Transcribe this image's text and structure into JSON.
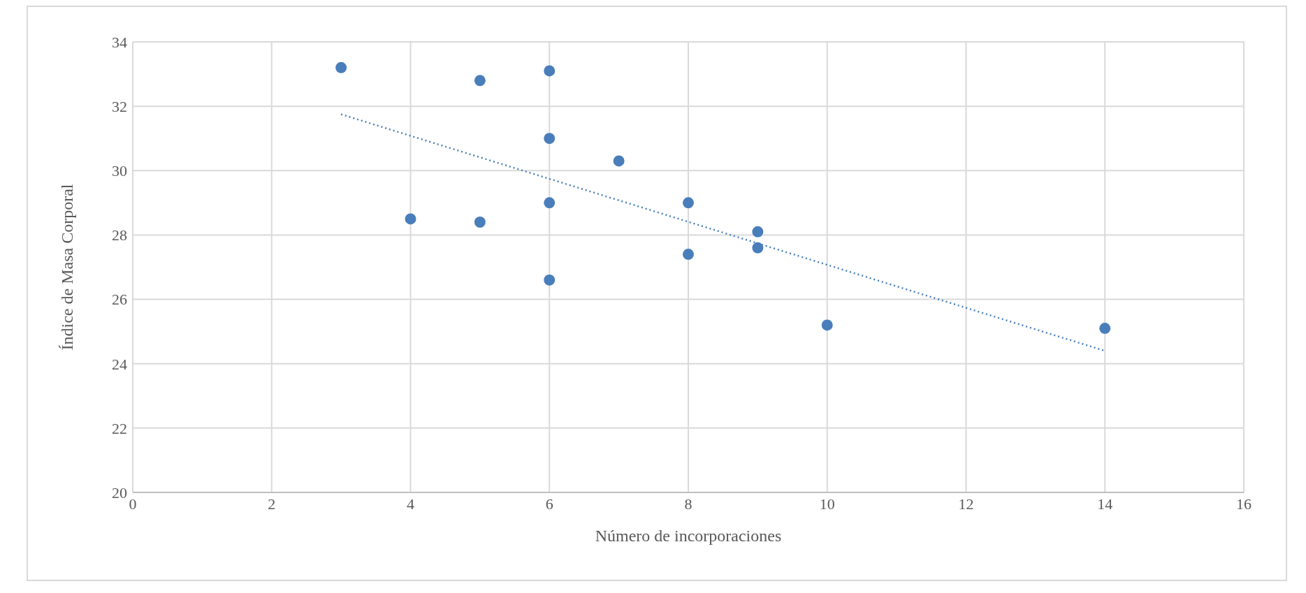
{
  "chart_data": {
    "type": "scatter",
    "xlabel": "Número de incorporaciones",
    "ylabel": "Índice de Masa Corporal",
    "xlim": [
      0,
      16
    ],
    "xticks": [
      0,
      2,
      4,
      6,
      8,
      10,
      12,
      14,
      16
    ],
    "ylim": [
      20,
      34
    ],
    "yticks": [
      20,
      22,
      24,
      26,
      28,
      30,
      32,
      34
    ],
    "grid": true,
    "marker": "circle",
    "series": [
      {
        "color": "#4a7ebb",
        "x": [
          3,
          5,
          6,
          6,
          7,
          4,
          5,
          6,
          8,
          9,
          9,
          8,
          6,
          10,
          14
        ],
        "values": [
          33.2,
          32.8,
          33.1,
          31.0,
          30.3,
          28.5,
          28.4,
          29.0,
          29.0,
          28.1,
          27.6,
          27.4,
          26.6,
          25.2,
          25.1
        ]
      },
      {
        "type": "line",
        "color": "#4a7ebb",
        "line_style": "dotted",
        "marker": "none",
        "x": [
          3,
          14
        ],
        "values": [
          31.75,
          24.4
        ]
      }
    ]
  }
}
